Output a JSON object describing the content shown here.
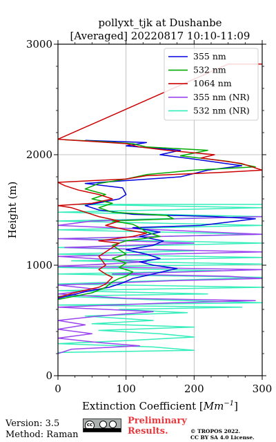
{
  "chart_data": {
    "type": "line",
    "title": "pollyxt_tjk at Dushanbe",
    "subtitle": "[Averaged] 20220817 10:10-11:09",
    "xlabel_prefix": "Extinction Coefficient [",
    "xlabel_unit": "Mm",
    "xlabel_exp": "−1",
    "xlabel_suffix": "]",
    "ylabel": "Height (m)",
    "xlim": [
      0,
      300
    ],
    "ylim": [
      0,
      3000
    ],
    "xticks": [
      "0",
      "100",
      "200",
      "300"
    ],
    "yticks": [
      "0",
      "1000",
      "2000",
      "3000"
    ],
    "grid": true,
    "legend_position": "top-right",
    "series": [
      {
        "name": "355 nm",
        "color": "#0000dd",
        "points": [
          [
            0,
            700
          ],
          [
            40,
            760
          ],
          [
            75,
            800
          ],
          [
            95,
            840
          ],
          [
            110,
            880
          ],
          [
            125,
            900
          ],
          [
            140,
            920
          ],
          [
            160,
            950
          ],
          [
            175,
            970
          ],
          [
            140,
            1000
          ],
          [
            120,
            1030
          ],
          [
            150,
            1060
          ],
          [
            130,
            1100
          ],
          [
            100,
            1140
          ],
          [
            140,
            1180
          ],
          [
            155,
            1220
          ],
          [
            120,
            1260
          ],
          [
            150,
            1300
          ],
          [
            110,
            1340
          ],
          [
            210,
            1360
          ],
          [
            250,
            1390
          ],
          [
            290,
            1420
          ],
          [
            230,
            1440
          ],
          [
            110,
            1460
          ],
          [
            60,
            1500
          ],
          [
            40,
            1540
          ],
          [
            90,
            1600
          ],
          [
            100,
            1640
          ],
          [
            95,
            1700
          ],
          [
            40,
            1740
          ],
          [
            180,
            1800
          ],
          [
            220,
            1860
          ],
          [
            270,
            1900
          ],
          [
            200,
            1960
          ],
          [
            150,
            2000
          ],
          [
            180,
            2040
          ],
          [
            100,
            2080
          ],
          [
            130,
            2110
          ],
          [
            40,
            2130
          ]
        ]
      },
      {
        "name": "532 nm",
        "color": "#00aa00",
        "points": [
          [
            0,
            690
          ],
          [
            50,
            750
          ],
          [
            70,
            800
          ],
          [
            80,
            850
          ],
          [
            90,
            880
          ],
          [
            100,
            900
          ],
          [
            110,
            940
          ],
          [
            90,
            980
          ],
          [
            100,
            1020
          ],
          [
            80,
            1060
          ],
          [
            100,
            1100
          ],
          [
            90,
            1140
          ],
          [
            80,
            1180
          ],
          [
            100,
            1220
          ],
          [
            150,
            1260
          ],
          [
            130,
            1300
          ],
          [
            120,
            1340
          ],
          [
            110,
            1370
          ],
          [
            80,
            1400
          ],
          [
            170,
            1420
          ],
          [
            160,
            1450
          ],
          [
            80,
            1480
          ],
          [
            60,
            1520
          ],
          [
            80,
            1560
          ],
          [
            50,
            1600
          ],
          [
            70,
            1640
          ],
          [
            40,
            1690
          ],
          [
            60,
            1740
          ],
          [
            100,
            1780
          ],
          [
            130,
            1820
          ],
          [
            200,
            1860
          ],
          [
            290,
            1890
          ],
          [
            250,
            1940
          ],
          [
            180,
            1990
          ],
          [
            220,
            2040
          ],
          [
            130,
            2070
          ],
          [
            110,
            2100
          ],
          [
            60,
            2120
          ],
          [
            10,
            2135
          ]
        ]
      },
      {
        "name": "1064 nm",
        "color": "#cc0000",
        "points": [
          [
            0,
            710
          ],
          [
            30,
            760
          ],
          [
            60,
            800
          ],
          [
            70,
            830
          ],
          [
            75,
            860
          ],
          [
            80,
            890
          ],
          [
            70,
            920
          ],
          [
            60,
            960
          ],
          [
            70,
            1000
          ],
          [
            65,
            1040
          ],
          [
            60,
            1080
          ],
          [
            70,
            1120
          ],
          [
            80,
            1160
          ],
          [
            90,
            1200
          ],
          [
            60,
            1220
          ],
          [
            110,
            1260
          ],
          [
            130,
            1290
          ],
          [
            100,
            1320
          ],
          [
            70,
            1360
          ],
          [
            90,
            1400
          ],
          [
            60,
            1440
          ],
          [
            40,
            1480
          ],
          [
            20,
            1520
          ],
          [
            0,
            1540
          ],
          [
            50,
            1560
          ],
          [
            80,
            1600
          ],
          [
            60,
            1640
          ],
          [
            30,
            1680
          ],
          [
            10,
            1720
          ],
          [
            0,
            1750
          ],
          [
            100,
            1780
          ],
          [
            130,
            1810
          ],
          [
            240,
            1840
          ],
          [
            300,
            1860
          ],
          [
            270,
            1920
          ],
          [
            210,
            1970
          ],
          [
            230,
            2000
          ],
          [
            160,
            2040
          ],
          [
            120,
            2070
          ],
          [
            100,
            2100
          ],
          [
            0,
            2140
          ],
          [
            250,
            2820
          ],
          [
            300,
            2820
          ]
        ]
      },
      {
        "name": "355 nm (NR)",
        "color": "#9944ee",
        "points": [
          [
            0,
            200
          ],
          [
            20,
            240
          ],
          [
            120,
            270
          ],
          [
            60,
            300
          ],
          [
            0,
            340
          ],
          [
            50,
            380
          ],
          [
            0,
            420
          ],
          [
            40,
            460
          ],
          [
            0,
            500
          ],
          [
            60,
            540
          ],
          [
            140,
            580
          ],
          [
            0,
            620
          ],
          [
            170,
            660
          ],
          [
            290,
            680
          ],
          [
            100,
            700
          ],
          [
            0,
            740
          ],
          [
            60,
            780
          ],
          [
            0,
            820
          ],
          [
            170,
            860
          ],
          [
            300,
            880
          ],
          [
            250,
            900
          ],
          [
            80,
            920
          ],
          [
            300,
            960
          ],
          [
            0,
            990
          ],
          [
            130,
            1030
          ],
          [
            0,
            1080
          ],
          [
            300,
            1120
          ],
          [
            10,
            1160
          ],
          [
            200,
            1200
          ],
          [
            0,
            1240
          ],
          [
            300,
            1280
          ],
          [
            150,
            1320
          ],
          [
            0,
            1360
          ],
          [
            50,
            1400
          ],
          [
            300,
            1440
          ]
        ]
      },
      {
        "name": "532 nm (NR)",
        "color": "#33eebb",
        "points": [
          [
            0,
            210
          ],
          [
            200,
            230
          ],
          [
            140,
            260
          ],
          [
            0,
            290
          ],
          [
            110,
            320
          ],
          [
            200,
            350
          ],
          [
            150,
            380
          ],
          [
            60,
            410
          ],
          [
            200,
            440
          ],
          [
            50,
            470
          ],
          [
            140,
            500
          ],
          [
            40,
            540
          ],
          [
            190,
            570
          ],
          [
            90,
            600
          ],
          [
            270,
            620
          ],
          [
            0,
            640
          ],
          [
            300,
            660
          ],
          [
            130,
            690
          ],
          [
            0,
            720
          ],
          [
            220,
            740
          ],
          [
            0,
            770
          ],
          [
            300,
            800
          ],
          [
            0,
            830
          ],
          [
            150,
            860
          ],
          [
            300,
            890
          ],
          [
            0,
            920
          ],
          [
            240,
            950
          ],
          [
            0,
            980
          ],
          [
            300,
            1010
          ],
          [
            20,
            1040
          ],
          [
            300,
            1070
          ],
          [
            0,
            1100
          ],
          [
            200,
            1130
          ],
          [
            0,
            1160
          ],
          [
            300,
            1200
          ],
          [
            0,
            1240
          ],
          [
            300,
            1280
          ],
          [
            0,
            1320
          ],
          [
            300,
            1360
          ],
          [
            0,
            1400
          ],
          [
            300,
            1440
          ],
          [
            0,
            1480
          ],
          [
            300,
            1520
          ],
          [
            30,
            1550
          ],
          [
            300,
            1550
          ]
        ]
      }
    ]
  },
  "footer": {
    "version": "Version: 3.5",
    "method": "Method: Raman",
    "preliminary_1": "Preliminary",
    "preliminary_2": "Results.",
    "copyright_1": "© TROPOS 2022.",
    "copyright_2": "CC BY SA 4.0 License.",
    "license_logo": "cc-by-sa-logo"
  }
}
